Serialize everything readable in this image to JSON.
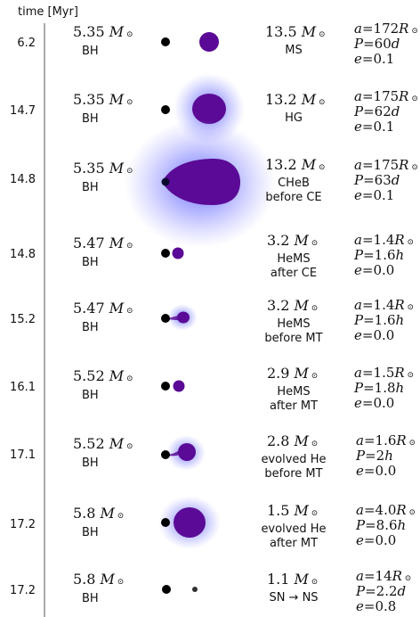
{
  "header": {
    "time_label": "time [Myr]"
  },
  "symbols": {
    "sun": "⊙",
    "mass_unit": "M",
    "a_var": "a",
    "p_var": "P",
    "e_var": "e",
    "radius_unit": "R"
  },
  "colors": {
    "companion": "#5a0a96",
    "glow": "#6a6cff",
    "black_hole": "#000000",
    "neutron_star": "#303030"
  },
  "stages": [
    {
      "time": "6.2",
      "bh_mass": "5.35",
      "bh_label": "BH",
      "star_mass": "13.5",
      "star_type": [
        "MS"
      ],
      "a": "172",
      "P": "60",
      "P_unit": "d",
      "e": "0.1"
    },
    {
      "time": "14.7",
      "bh_mass": "5.35",
      "bh_label": "BH",
      "star_mass": "13.2",
      "star_type": [
        "HG"
      ],
      "a": "175",
      "P": "62",
      "P_unit": "d",
      "e": "0.1"
    },
    {
      "time": "14.8",
      "bh_mass": "5.35",
      "bh_label": "BH",
      "star_mass": "13.2",
      "star_type": [
        "CHeB",
        "before CE"
      ],
      "a": "175",
      "P": "63",
      "P_unit": "d",
      "e": "0.1"
    },
    {
      "time": "14.8",
      "bh_mass": "5.47",
      "bh_label": "BH",
      "star_mass": "3.2",
      "star_type": [
        "HeMS",
        "after CE"
      ],
      "a": "1.4",
      "P": "1.6",
      "P_unit": "h",
      "e": "0.0"
    },
    {
      "time": "15.2",
      "bh_mass": "5.47",
      "bh_label": "BH",
      "star_mass": "3.2",
      "star_type": [
        "HeMS",
        "before MT"
      ],
      "a": "1.4",
      "P": "1.6",
      "P_unit": "h",
      "e": "0.0"
    },
    {
      "time": "16.1",
      "bh_mass": "5.52",
      "bh_label": "BH",
      "star_mass": "2.9",
      "star_type": [
        "HeMS",
        "after MT"
      ],
      "a": "1.5",
      "P": "1.8",
      "P_unit": "h",
      "e": "0.0"
    },
    {
      "time": "17.1",
      "bh_mass": "5.52",
      "bh_label": "BH",
      "star_mass": "2.8",
      "star_type": [
        "evolved He",
        "before MT"
      ],
      "a": "1.6",
      "P": "2",
      "P_unit": "h",
      "e": "0.0"
    },
    {
      "time": "17.2",
      "bh_mass": "5.8",
      "bh_label": "BH",
      "star_mass": "1.5",
      "star_type": [
        "evolved He",
        "after MT"
      ],
      "a": "4.0",
      "P": "8.6",
      "P_unit": "h",
      "e": "0.0"
    },
    {
      "time": "17.2",
      "bh_mass": "5.8",
      "bh_label": "BH",
      "star_mass": "1.1",
      "star_type": [
        "SN → NS"
      ],
      "a": "14",
      "P": "2.2",
      "P_unit": "d",
      "e": "0.8"
    }
  ]
}
